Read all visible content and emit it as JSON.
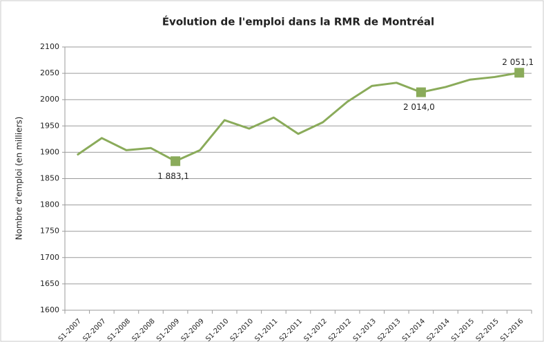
{
  "chart_data": {
    "type": "line",
    "title": "Évolution de l'emploi dans la RMR de Montréal",
    "y_label": "Nombre d'emploi (en milliers)",
    "categories": [
      "S1-2007",
      "S2-2007",
      "S1-2008",
      "S2-2008",
      "S1-2009",
      "S2-2009",
      "S1-2010",
      "S2-2010",
      "S1-2011",
      "S2-2011",
      "S1-2012",
      "S2-2012",
      "S1-2013",
      "S2-2013",
      "S1-2014",
      "S2-2014",
      "S1-2015",
      "S2-2015",
      "S1-2016"
    ],
    "values": [
      1895,
      1927,
      1904,
      1908,
      1883.1,
      1904,
      1961,
      1945,
      1966,
      1935,
      1957,
      1996,
      2026,
      2032,
      2014.0,
      2024,
      2038,
      2043,
      2051.1
    ],
    "value_labels": [
      null,
      null,
      null,
      null,
      "1 883,1",
      null,
      null,
      null,
      null,
      null,
      null,
      null,
      null,
      null,
      "2 014,0",
      null,
      null,
      null,
      "2 051,1"
    ],
    "color": "#8aab5a",
    "ylim": [
      1600,
      2100
    ],
    "yticks": [
      1600,
      1650,
      1700,
      1750,
      1800,
      1850,
      1900,
      1950,
      2000,
      2050,
      2100
    ],
    "grid": true
  }
}
